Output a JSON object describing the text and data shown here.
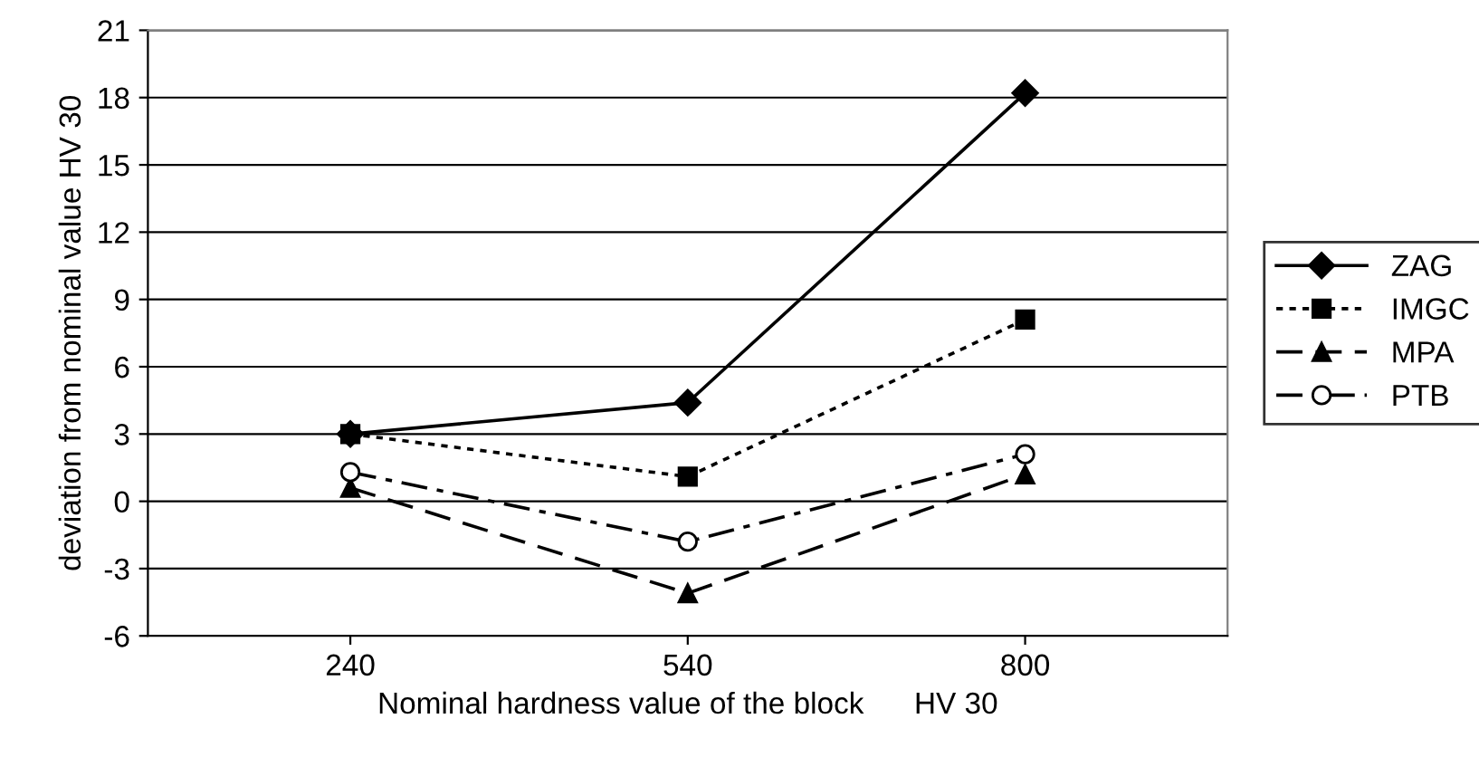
{
  "chart_data": {
    "type": "line",
    "xlabel": "Nominal hardness value of the block      HV 30",
    "ylabel": "deviation from nominal value HV 30",
    "categories": [
      "240",
      "540",
      "800"
    ],
    "series": [
      {
        "name": "ZAG",
        "color": "#000000",
        "values": [
          3,
          4.4,
          18.2
        ],
        "marker": "diamond",
        "line_style": "solid"
      },
      {
        "name": "IMGC",
        "color": "#000000",
        "values": [
          3,
          1.1,
          8.1
        ],
        "marker": "square",
        "line_style": "dotted"
      },
      {
        "name": "MPA",
        "color": "#000000",
        "values": [
          0.6,
          -4.1,
          1.2
        ],
        "marker": "triangle",
        "line_style": "dashed"
      },
      {
        "name": "PTB",
        "color": "#000000",
        "values": [
          1.3,
          -1.8,
          2.1
        ],
        "marker": "circle",
        "line_style": "dashdot"
      }
    ],
    "ylim": [
      -6,
      21
    ],
    "yticks": [
      -6,
      -3,
      0,
      3,
      6,
      9,
      12,
      15,
      18,
      21
    ],
    "grid": "y",
    "legend": "right"
  }
}
